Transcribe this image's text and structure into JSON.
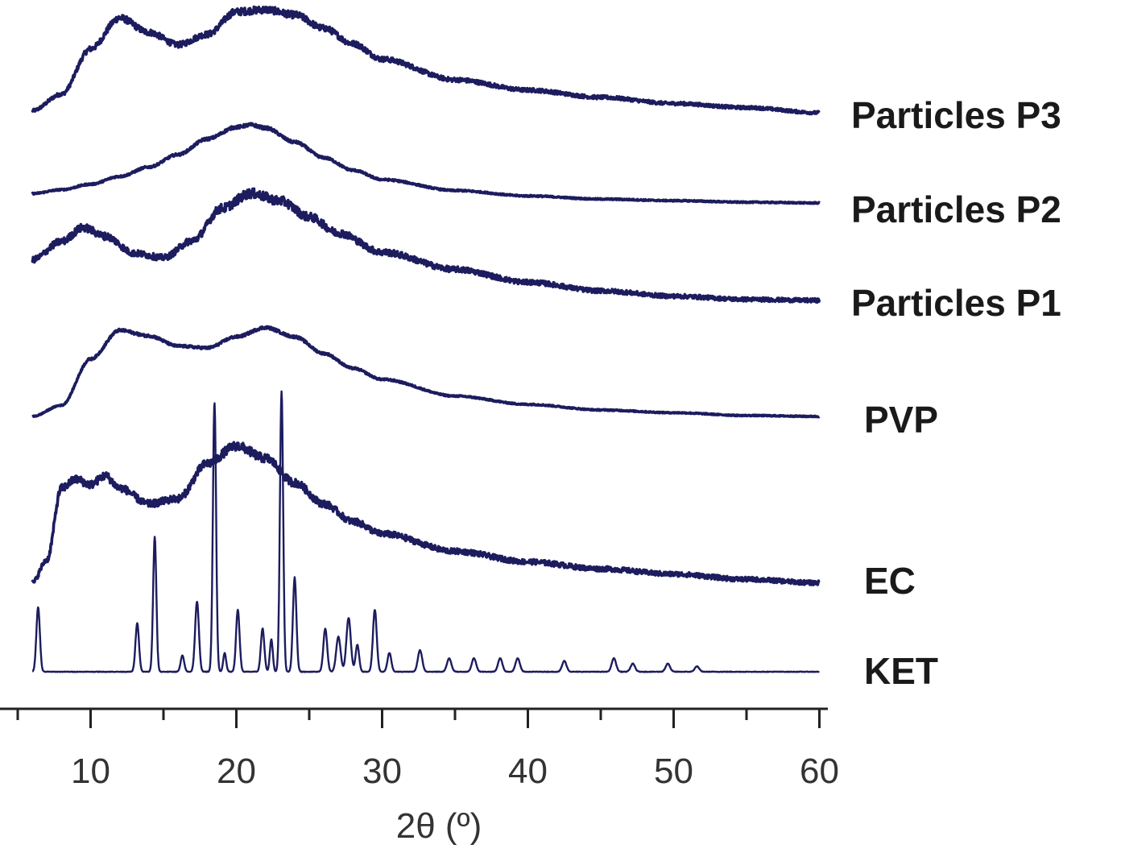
{
  "chart_data": {
    "type": "line",
    "title": "",
    "xlabel": "2θ (º)",
    "ylabel": "",
    "xlim": [
      5,
      62
    ],
    "xticks": [
      10,
      20,
      30,
      40,
      50,
      60
    ],
    "xtick_labels": [
      "10",
      "20",
      "30",
      "40",
      "50",
      "60"
    ],
    "grid": false,
    "legend": "labels at right end of each trace",
    "color": "#1c1c5e",
    "series": [
      {
        "name": "Particles P3",
        "x": [
          6,
          8,
          10,
          12,
          14,
          16,
          18,
          20,
          22,
          24,
          26,
          28,
          30,
          35,
          40,
          45,
          50,
          55,
          60
        ],
        "values": [
          0.02,
          0.18,
          0.62,
          0.92,
          0.78,
          0.66,
          0.76,
          0.98,
          1.0,
          0.95,
          0.82,
          0.67,
          0.52,
          0.32,
          0.22,
          0.15,
          0.09,
          0.05,
          0.0
        ],
        "noise": 0.035
      },
      {
        "name": "Particles P2",
        "x": [
          6,
          8,
          10,
          12,
          14,
          16,
          18,
          20,
          21,
          22,
          24,
          26,
          28,
          30,
          35,
          40,
          45,
          50,
          55,
          60
        ],
        "values": [
          0.12,
          0.17,
          0.24,
          0.34,
          0.46,
          0.62,
          0.82,
          0.97,
          1.0,
          0.96,
          0.78,
          0.58,
          0.42,
          0.3,
          0.16,
          0.09,
          0.05,
          0.03,
          0.01,
          0.0
        ],
        "noise": 0.02
      },
      {
        "name": "Particles P1",
        "x": [
          6,
          8,
          9.5,
          11,
          13,
          15,
          17,
          19,
          21,
          23,
          25,
          27,
          30,
          35,
          40,
          45,
          50,
          55,
          60
        ],
        "values": [
          0.38,
          0.55,
          0.68,
          0.6,
          0.44,
          0.4,
          0.56,
          0.86,
          1.0,
          0.93,
          0.78,
          0.63,
          0.45,
          0.29,
          0.17,
          0.09,
          0.04,
          0.01,
          0.0
        ],
        "noise": 0.045
      },
      {
        "name": "PVP",
        "x": [
          6,
          8,
          10,
          12,
          14,
          16,
          18,
          20,
          22,
          24,
          26,
          28,
          30,
          35,
          40,
          45,
          50,
          55,
          60
        ],
        "values": [
          0.0,
          0.12,
          0.62,
          0.93,
          0.87,
          0.76,
          0.74,
          0.86,
          0.96,
          0.86,
          0.68,
          0.52,
          0.4,
          0.22,
          0.13,
          0.07,
          0.04,
          0.01,
          0.0
        ],
        "noise": 0.015
      },
      {
        "name": "EC",
        "x": [
          6,
          7,
          8,
          9,
          10,
          11,
          12,
          14,
          16,
          18,
          20,
          22,
          24,
          26,
          28,
          30,
          35,
          40,
          45,
          50,
          55,
          60
        ],
        "values": [
          0.02,
          0.15,
          0.56,
          0.61,
          0.58,
          0.63,
          0.56,
          0.47,
          0.5,
          0.7,
          0.8,
          0.73,
          0.59,
          0.47,
          0.37,
          0.3,
          0.2,
          0.14,
          0.1,
          0.07,
          0.04,
          0.02
        ],
        "noise": 0.03
      },
      {
        "name": "KET",
        "baseline": 0,
        "peaks": [
          {
            "x": 6.4,
            "h": 0.24,
            "w": 0.12
          },
          {
            "x": 13.2,
            "h": 0.18,
            "w": 0.12
          },
          {
            "x": 14.4,
            "h": 0.5,
            "w": 0.11
          },
          {
            "x": 16.3,
            "h": 0.06,
            "w": 0.12
          },
          {
            "x": 17.3,
            "h": 0.26,
            "w": 0.13
          },
          {
            "x": 18.5,
            "h": 1.0,
            "w": 0.11
          },
          {
            "x": 19.2,
            "h": 0.07,
            "w": 0.1
          },
          {
            "x": 20.1,
            "h": 0.23,
            "w": 0.12
          },
          {
            "x": 21.8,
            "h": 0.16,
            "w": 0.12
          },
          {
            "x": 22.4,
            "h": 0.12,
            "w": 0.1
          },
          {
            "x": 23.1,
            "h": 1.04,
            "w": 0.11
          },
          {
            "x": 24.0,
            "h": 0.35,
            "w": 0.12
          },
          {
            "x": 26.1,
            "h": 0.16,
            "w": 0.13
          },
          {
            "x": 27.0,
            "h": 0.13,
            "w": 0.15
          },
          {
            "x": 27.7,
            "h": 0.2,
            "w": 0.15
          },
          {
            "x": 28.3,
            "h": 0.1,
            "w": 0.12
          },
          {
            "x": 29.5,
            "h": 0.23,
            "w": 0.13
          },
          {
            "x": 30.5,
            "h": 0.07,
            "w": 0.13
          },
          {
            "x": 32.6,
            "h": 0.08,
            "w": 0.15
          },
          {
            "x": 34.6,
            "h": 0.05,
            "w": 0.15
          },
          {
            "x": 36.3,
            "h": 0.05,
            "w": 0.15
          },
          {
            "x": 38.1,
            "h": 0.05,
            "w": 0.15
          },
          {
            "x": 39.3,
            "h": 0.05,
            "w": 0.15
          },
          {
            "x": 42.5,
            "h": 0.04,
            "w": 0.15
          },
          {
            "x": 45.9,
            "h": 0.05,
            "w": 0.15
          },
          {
            "x": 47.2,
            "h": 0.03,
            "w": 0.15
          },
          {
            "x": 49.6,
            "h": 0.03,
            "w": 0.15
          },
          {
            "x": 51.6,
            "h": 0.02,
            "w": 0.15
          }
        ],
        "noise": 0.002
      }
    ]
  }
}
